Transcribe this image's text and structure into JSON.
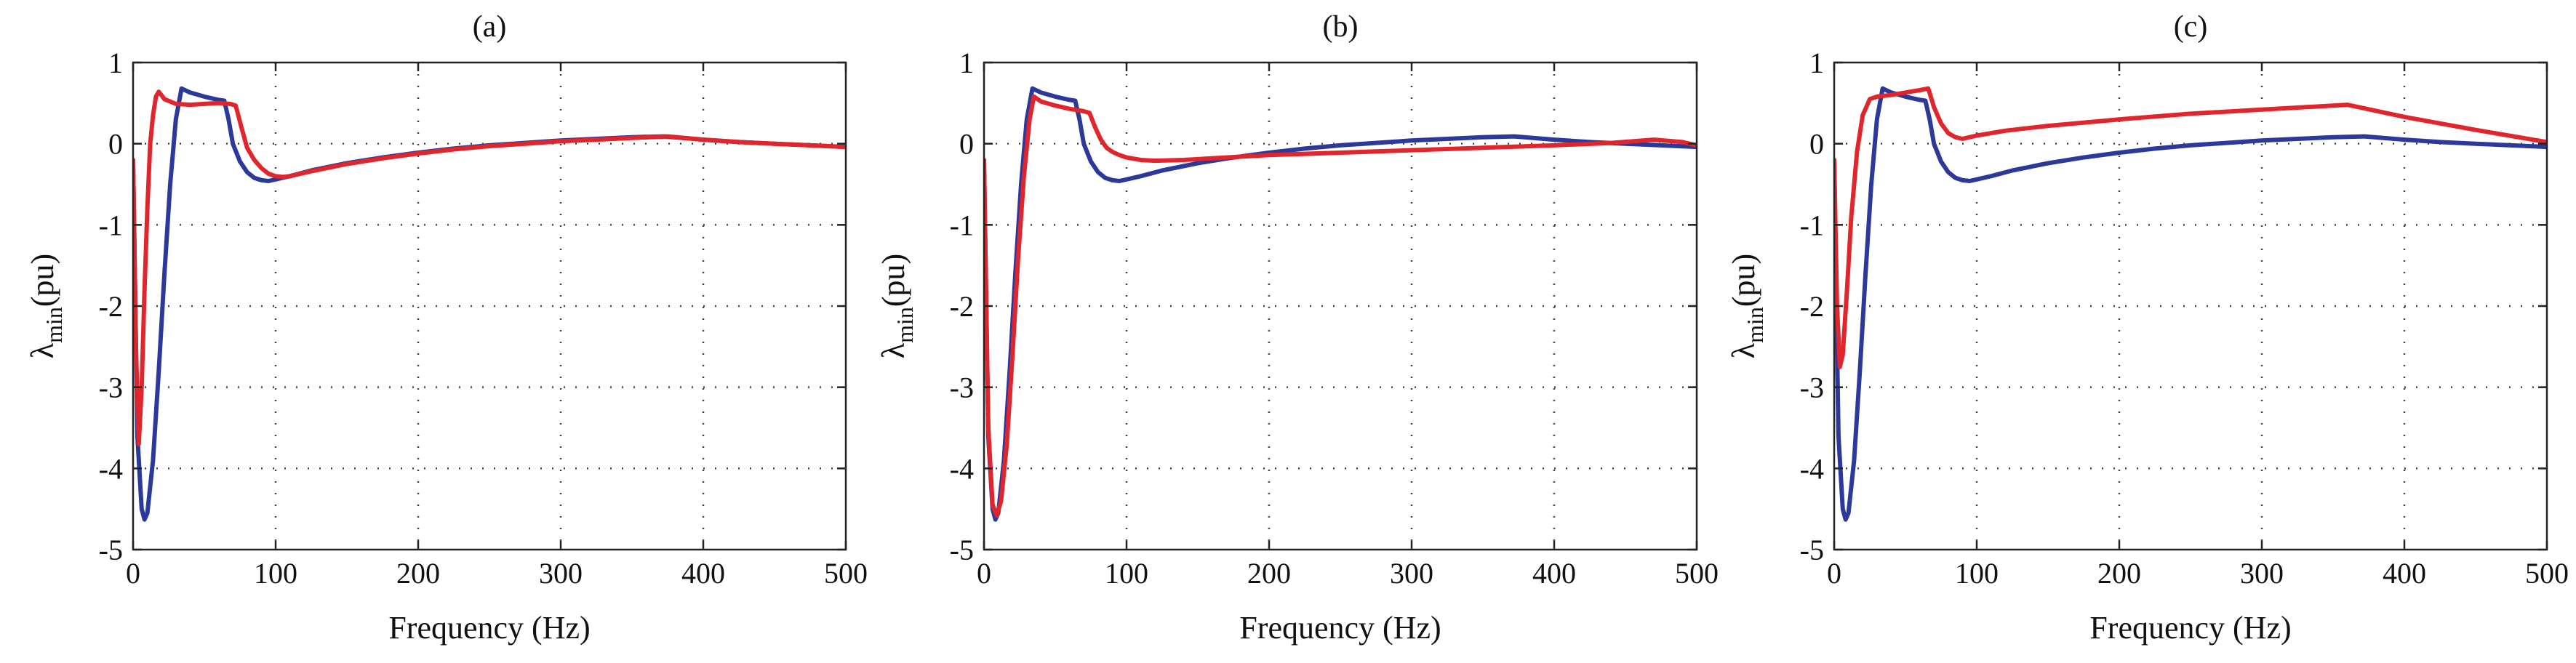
{
  "chart_data": [
    {
      "type": "line",
      "title": "(a)",
      "xlabel": "Frequency (Hz)",
      "ylabel_symbol": "λ",
      "ylabel_sub": "min",
      "ylabel_unit": "(pu)",
      "xlim": [
        0,
        500
      ],
      "ylim": [
        -5,
        1
      ],
      "xticks": [
        0,
        100,
        200,
        300,
        400,
        500
      ],
      "yticks": [
        1,
        0,
        -1,
        -2,
        -3,
        -4,
        -5
      ],
      "grid": true,
      "series": [
        {
          "name": "blue",
          "color": "#2b3a9a",
          "x": [
            0,
            3,
            6,
            8,
            10,
            14,
            18,
            22,
            26,
            30,
            34,
            40,
            50,
            60,
            64,
            67,
            70,
            75,
            80,
            85,
            90,
            95,
            100,
            110,
            125,
            150,
            175,
            200,
            225,
            250,
            275,
            300,
            325,
            350,
            372,
            400,
            425,
            450,
            475,
            500
          ],
          "y": [
            -0.2,
            -3.6,
            -4.5,
            -4.63,
            -4.55,
            -3.9,
            -2.8,
            -1.6,
            -0.5,
            0.3,
            0.68,
            0.63,
            0.58,
            0.54,
            0.53,
            0.3,
            0.0,
            -0.22,
            -0.35,
            -0.42,
            -0.45,
            -0.46,
            -0.44,
            -0.4,
            -0.33,
            -0.24,
            -0.17,
            -0.11,
            -0.06,
            -0.02,
            0.01,
            0.04,
            0.06,
            0.08,
            0.09,
            0.05,
            0.02,
            0.0,
            -0.02,
            -0.04
          ]
        },
        {
          "name": "red",
          "color": "#e0262c",
          "x": [
            0,
            2,
            4,
            6,
            8,
            10,
            12,
            14,
            16,
            18,
            22,
            30,
            40,
            50,
            60,
            68,
            72,
            76,
            80,
            85,
            90,
            95,
            100,
            105,
            110,
            125,
            150,
            175,
            200,
            225,
            250,
            275,
            300,
            325,
            350,
            375,
            400,
            425,
            450,
            475,
            500
          ],
          "y": [
            -0.2,
            -2.5,
            -3.7,
            -3.0,
            -1.8,
            -0.8,
            0.0,
            0.35,
            0.58,
            0.64,
            0.55,
            0.49,
            0.48,
            0.49,
            0.5,
            0.49,
            0.47,
            0.2,
            -0.05,
            -0.2,
            -0.3,
            -0.37,
            -0.4,
            -0.41,
            -0.4,
            -0.34,
            -0.25,
            -0.18,
            -0.12,
            -0.07,
            -0.03,
            0.0,
            0.03,
            0.05,
            0.07,
            0.09,
            0.05,
            0.02,
            0.0,
            -0.02,
            -0.04
          ]
        }
      ]
    },
    {
      "type": "line",
      "title": "(b)",
      "xlabel": "Frequency (Hz)",
      "ylabel_symbol": "λ",
      "ylabel_sub": "min",
      "ylabel_unit": "(pu)",
      "xlim": [
        0,
        500
      ],
      "ylim": [
        -5,
        1
      ],
      "xticks": [
        0,
        100,
        200,
        300,
        400,
        500
      ],
      "yticks": [
        1,
        0,
        -1,
        -2,
        -3,
        -4,
        -5
      ],
      "grid": true,
      "series": [
        {
          "name": "blue",
          "color": "#2b3a9a",
          "x": [
            0,
            3,
            6,
            8,
            10,
            14,
            18,
            22,
            26,
            30,
            34,
            40,
            50,
            60,
            64,
            67,
            70,
            75,
            80,
            85,
            90,
            95,
            100,
            110,
            125,
            150,
            175,
            200,
            225,
            250,
            275,
            300,
            325,
            350,
            372,
            400,
            425,
            450,
            475,
            500
          ],
          "y": [
            -0.2,
            -3.6,
            -4.5,
            -4.63,
            -4.55,
            -3.9,
            -2.8,
            -1.6,
            -0.5,
            0.3,
            0.68,
            0.63,
            0.58,
            0.54,
            0.53,
            0.3,
            0.0,
            -0.22,
            -0.35,
            -0.42,
            -0.45,
            -0.46,
            -0.44,
            -0.4,
            -0.33,
            -0.24,
            -0.17,
            -0.11,
            -0.06,
            -0.02,
            0.01,
            0.04,
            0.06,
            0.08,
            0.09,
            0.05,
            0.02,
            0.0,
            -0.02,
            -0.04
          ]
        },
        {
          "name": "red",
          "color": "#e0262c",
          "x": [
            0,
            3,
            6,
            9,
            12,
            16,
            20,
            24,
            28,
            32,
            35,
            40,
            50,
            60,
            70,
            74,
            78,
            82,
            86,
            90,
            95,
            100,
            110,
            120,
            140,
            160,
            180,
            200,
            250,
            300,
            350,
            400,
            440,
            470,
            490,
            500
          ],
          "y": [
            -0.2,
            -3.5,
            -4.45,
            -4.58,
            -4.4,
            -3.7,
            -2.6,
            -1.4,
            -0.4,
            0.3,
            0.58,
            0.52,
            0.47,
            0.43,
            0.4,
            0.38,
            0.2,
            0.05,
            -0.05,
            -0.1,
            -0.14,
            -0.17,
            -0.2,
            -0.21,
            -0.2,
            -0.18,
            -0.16,
            -0.14,
            -0.11,
            -0.08,
            -0.05,
            -0.02,
            0.01,
            0.05,
            0.02,
            -0.02
          ]
        }
      ]
    },
    {
      "type": "line",
      "title": "(c)",
      "xlabel": "Frequency (Hz)",
      "ylabel_symbol": "λ",
      "ylabel_sub": "min",
      "ylabel_unit": "(pu)",
      "xlim": [
        0,
        500
      ],
      "ylim": [
        -5,
        1
      ],
      "xticks": [
        0,
        100,
        200,
        300,
        400,
        500
      ],
      "yticks": [
        1,
        0,
        -1,
        -2,
        -3,
        -4,
        -5
      ],
      "grid": true,
      "series": [
        {
          "name": "blue",
          "color": "#2b3a9a",
          "x": [
            0,
            3,
            6,
            8,
            10,
            14,
            18,
            22,
            26,
            30,
            34,
            40,
            50,
            60,
            64,
            67,
            70,
            75,
            80,
            85,
            90,
            95,
            100,
            110,
            125,
            150,
            175,
            200,
            225,
            250,
            275,
            300,
            325,
            350,
            372,
            400,
            425,
            450,
            475,
            500
          ],
          "y": [
            -0.2,
            -3.6,
            -4.5,
            -4.63,
            -4.55,
            -3.9,
            -2.8,
            -1.6,
            -0.5,
            0.3,
            0.68,
            0.63,
            0.58,
            0.54,
            0.53,
            0.3,
            0.0,
            -0.22,
            -0.35,
            -0.42,
            -0.45,
            -0.46,
            -0.44,
            -0.4,
            -0.33,
            -0.24,
            -0.17,
            -0.11,
            -0.06,
            -0.02,
            0.01,
            0.04,
            0.06,
            0.08,
            0.09,
            0.05,
            0.02,
            0.0,
            -0.02,
            -0.04
          ]
        },
        {
          "name": "red",
          "color": "#e0262c",
          "x": [
            0,
            2,
            4,
            6,
            9,
            12,
            16,
            20,
            25,
            30,
            40,
            50,
            60,
            66,
            70,
            75,
            80,
            85,
            90,
            95,
            100,
            120,
            150,
            200,
            250,
            300,
            350,
            360,
            400,
            450,
            500
          ],
          "y": [
            -0.2,
            -2.0,
            -2.75,
            -2.6,
            -1.8,
            -0.9,
            -0.1,
            0.35,
            0.55,
            0.58,
            0.6,
            0.63,
            0.66,
            0.68,
            0.45,
            0.25,
            0.13,
            0.08,
            0.06,
            0.08,
            0.1,
            0.16,
            0.22,
            0.3,
            0.37,
            0.42,
            0.47,
            0.48,
            0.33,
            0.17,
            0.02
          ]
        }
      ]
    }
  ]
}
